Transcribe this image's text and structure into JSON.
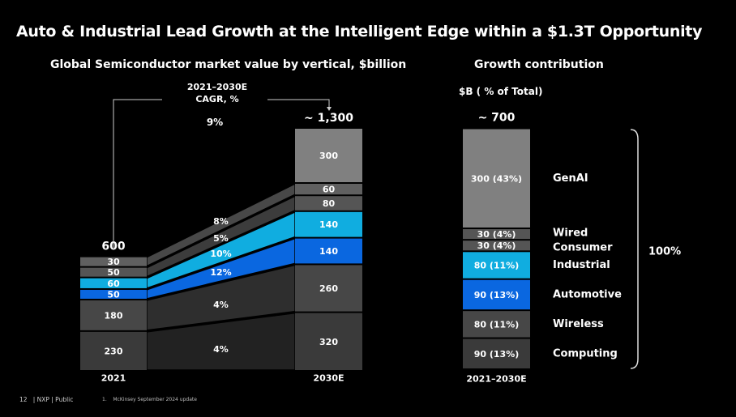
{
  "title": "Auto & Industrial Lead Growth at the Intelligent Edge within a $1.3T Opportunity",
  "footer": {
    "page": "12",
    "brand": "| NXP | Public",
    "note_marker": "1.",
    "note": "McKinsey September 2024 update"
  },
  "colors": {
    "Computing": "#3a3a3a",
    "Wireless": "#474747",
    "Automotive": "#0a67e0",
    "Industrial": "#10ade0",
    "Consumer": "#555555",
    "Wired": "#606060",
    "GenAI": "#808080",
    "automotive_label": "#3d8ff0",
    "industrial_label": "#2fb8e8"
  },
  "chart_data": [
    {
      "type": "bar",
      "stacked": true,
      "title": "Global Semiconductor market value by vertical, $billion",
      "categories": [
        "2021",
        "2030E"
      ],
      "totals": [
        "600",
        "~ 1,300"
      ],
      "cagr_header": [
        "2021–2030E",
        "CAGR, %"
      ],
      "cagr_total": "9%",
      "series": [
        {
          "name": "Computing",
          "values": [
            230,
            320
          ],
          "cagr": "4%"
        },
        {
          "name": "Wireless",
          "values": [
            180,
            260
          ],
          "cagr": "4%"
        },
        {
          "name": "Automotive",
          "values": [
            50,
            140
          ],
          "cagr": "12%"
        },
        {
          "name": "Industrial",
          "values": [
            60,
            140
          ],
          "cagr": "10%"
        },
        {
          "name": "Consumer",
          "values": [
            50,
            80
          ],
          "cagr": "5%"
        },
        {
          "name": "Wired",
          "values": [
            30,
            60
          ],
          "cagr": "8%"
        },
        {
          "name": "GenAI",
          "values": [
            0,
            300
          ],
          "cagr": ""
        }
      ]
    },
    {
      "type": "bar",
      "stacked": true,
      "title": "Growth contribution",
      "unit": "$B ( % of Total)",
      "categories": [
        "2021–2030E"
      ],
      "total": "~ 700",
      "bracket_label": "100%",
      "series": [
        {
          "name": "Computing",
          "value": 90,
          "label": "90 (13%)"
        },
        {
          "name": "Wireless",
          "value": 80,
          "label": "80 (11%)"
        },
        {
          "name": "Automotive",
          "value": 90,
          "label": "90 (13%)"
        },
        {
          "name": "Industrial",
          "value": 80,
          "label": "80 (11%)"
        },
        {
          "name": "Consumer",
          "value": 30,
          "label": "30 (4%)"
        },
        {
          "name": "Wired",
          "value": 30,
          "label": "30 (4%)"
        },
        {
          "name": "GenAI",
          "value": 300,
          "label": "300 (43%)"
        }
      ]
    }
  ]
}
